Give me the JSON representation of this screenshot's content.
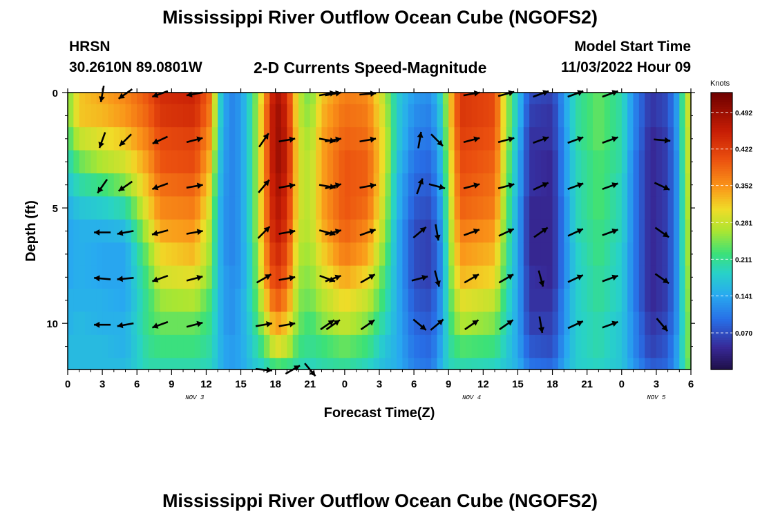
{
  "page": {
    "title": "Mississippi River Outflow Ocean Cube (NGOFS2)",
    "second_title": "Mississippi River Outflow Ocean Cube (NGOFS2)"
  },
  "header": {
    "station": "HRSN",
    "coords": "30.2610N  89.0801W",
    "subtitle": "2-D Currents Speed-Magnitude",
    "model_label": "Model Start Time",
    "model_time": "11/03/2022 Hour 09"
  },
  "colors": {
    "background": "#ffffff",
    "arrow": "#000000"
  },
  "chart_data": {
    "type": "heatmap",
    "title": "2-D Currents Speed-Magnitude",
    "xlabel": "Forecast Time(Z)",
    "ylabel": "Depth (ft)",
    "x_tick_labels": [
      "0",
      "3",
      "6",
      "9",
      "12",
      "15",
      "18",
      "21",
      "0",
      "3",
      "6",
      "9",
      "12",
      "15",
      "18",
      "21",
      "0",
      "3",
      "6"
    ],
    "x_range_hours": [
      0,
      54
    ],
    "date_labels": [
      {
        "label": "NOV 3",
        "hour": 11
      },
      {
        "label": "NOV 4",
        "hour": 35
      },
      {
        "label": "NOV 5",
        "hour": 51
      }
    ],
    "y_tick_labels": [
      "0",
      "5",
      "10"
    ],
    "y_tick_values": [
      0,
      5,
      10
    ],
    "y_range_ft": [
      0,
      12
    ],
    "colorbar": {
      "label": "Knots",
      "tick_labels": [
        "0.492",
        "0.422",
        "0.352",
        "0.281",
        "0.211",
        "0.141",
        "0.070"
      ],
      "tick_values": [
        0.492,
        0.422,
        0.352,
        0.281,
        0.211,
        0.141,
        0.07
      ],
      "range": [
        0.0,
        0.53
      ]
    },
    "depths_ft": [
      0,
      1,
      2,
      3,
      4,
      5,
      6,
      7,
      8,
      9,
      10,
      11,
      12
    ],
    "speed_profile": [
      {
        "hour": 0,
        "u": [
          0.24,
          0.24,
          0.22,
          0.19,
          0.17,
          0.15,
          0.14,
          0.14,
          0.14,
          0.15,
          0.15,
          0.16,
          0.16
        ]
      },
      {
        "hour": 1,
        "u": [
          0.32,
          0.32,
          0.28,
          0.24,
          0.2,
          0.17,
          0.15,
          0.15,
          0.15,
          0.15,
          0.16,
          0.16,
          0.16
        ]
      },
      {
        "hour": 3,
        "u": [
          0.34,
          0.33,
          0.3,
          0.27,
          0.22,
          0.18,
          0.15,
          0.14,
          0.14,
          0.15,
          0.15,
          0.16,
          0.16
        ]
      },
      {
        "hour": 5,
        "u": [
          0.36,
          0.35,
          0.32,
          0.29,
          0.25,
          0.2,
          0.16,
          0.14,
          0.14,
          0.14,
          0.15,
          0.15,
          0.16
        ]
      },
      {
        "hour": 7,
        "u": [
          0.4,
          0.39,
          0.37,
          0.35,
          0.33,
          0.31,
          0.28,
          0.25,
          0.23,
          0.22,
          0.22,
          0.21,
          0.2
        ]
      },
      {
        "hour": 8,
        "u": [
          0.44,
          0.43,
          0.41,
          0.4,
          0.38,
          0.36,
          0.34,
          0.31,
          0.29,
          0.26,
          0.24,
          0.22,
          0.2
        ]
      },
      {
        "hour": 11,
        "u": [
          0.45,
          0.44,
          0.42,
          0.41,
          0.39,
          0.37,
          0.35,
          0.33,
          0.3,
          0.27,
          0.24,
          0.22,
          0.2
        ]
      },
      {
        "hour": 12.5,
        "u": [
          0.37,
          0.36,
          0.34,
          0.32,
          0.3,
          0.28,
          0.26,
          0.25,
          0.24,
          0.22,
          0.21,
          0.2,
          0.19
        ]
      },
      {
        "hour": 13,
        "u": [
          0.2,
          0.2,
          0.19,
          0.18,
          0.17,
          0.16,
          0.16,
          0.16,
          0.16,
          0.16,
          0.16,
          0.16,
          0.16
        ]
      },
      {
        "hour": 14,
        "u": [
          0.11,
          0.11,
          0.11,
          0.11,
          0.11,
          0.11,
          0.11,
          0.11,
          0.12,
          0.12,
          0.12,
          0.13,
          0.13
        ]
      },
      {
        "hour": 15,
        "u": [
          0.13,
          0.13,
          0.13,
          0.13,
          0.13,
          0.13,
          0.13,
          0.13,
          0.13,
          0.14,
          0.14,
          0.14,
          0.14
        ]
      },
      {
        "hour": 16,
        "u": [
          0.21,
          0.21,
          0.21,
          0.21,
          0.21,
          0.21,
          0.21,
          0.2,
          0.2,
          0.2,
          0.19,
          0.18,
          0.17
        ]
      },
      {
        "hour": 17,
        "u": [
          0.34,
          0.35,
          0.35,
          0.35,
          0.35,
          0.35,
          0.35,
          0.34,
          0.33,
          0.3,
          0.27,
          0.23,
          0.19
        ]
      },
      {
        "hour": 18,
        "u": [
          0.49,
          0.5,
          0.5,
          0.5,
          0.49,
          0.48,
          0.47,
          0.45,
          0.43,
          0.4,
          0.35,
          0.3,
          0.23
        ]
      },
      {
        "hour": 19,
        "u": [
          0.44,
          0.45,
          0.46,
          0.46,
          0.45,
          0.44,
          0.43,
          0.41,
          0.39,
          0.36,
          0.32,
          0.28,
          0.22
        ]
      },
      {
        "hour": 20,
        "u": [
          0.28,
          0.28,
          0.29,
          0.29,
          0.29,
          0.29,
          0.28,
          0.27,
          0.26,
          0.25,
          0.24,
          0.22,
          0.2
        ]
      },
      {
        "hour": 21,
        "u": [
          0.24,
          0.25,
          0.26,
          0.27,
          0.27,
          0.27,
          0.27,
          0.26,
          0.25,
          0.24,
          0.22,
          0.21,
          0.19
        ]
      },
      {
        "hour": 22,
        "u": [
          0.32,
          0.33,
          0.34,
          0.34,
          0.34,
          0.34,
          0.33,
          0.31,
          0.29,
          0.27,
          0.25,
          0.22,
          0.2
        ]
      },
      {
        "hour": 24,
        "u": [
          0.37,
          0.38,
          0.39,
          0.4,
          0.4,
          0.4,
          0.39,
          0.37,
          0.34,
          0.31,
          0.28,
          0.24,
          0.21
        ]
      },
      {
        "hour": 26,
        "u": [
          0.36,
          0.37,
          0.38,
          0.39,
          0.39,
          0.38,
          0.36,
          0.34,
          0.31,
          0.28,
          0.25,
          0.22,
          0.19
        ]
      },
      {
        "hour": 27.5,
        "u": [
          0.27,
          0.28,
          0.29,
          0.29,
          0.28,
          0.27,
          0.26,
          0.24,
          0.22,
          0.21,
          0.19,
          0.17,
          0.16
        ]
      },
      {
        "hour": 28.5,
        "u": [
          0.18,
          0.18,
          0.18,
          0.17,
          0.16,
          0.16,
          0.15,
          0.15,
          0.15,
          0.15,
          0.15,
          0.15,
          0.15
        ]
      },
      {
        "hour": 30,
        "u": [
          0.13,
          0.12,
          0.11,
          0.1,
          0.09,
          0.08,
          0.07,
          0.07,
          0.07,
          0.08,
          0.09,
          0.1,
          0.11
        ]
      },
      {
        "hour": 31.5,
        "u": [
          0.12,
          0.11,
          0.1,
          0.09,
          0.08,
          0.07,
          0.06,
          0.06,
          0.06,
          0.07,
          0.08,
          0.09,
          0.1
        ]
      },
      {
        "hour": 32.5,
        "u": [
          0.2,
          0.19,
          0.18,
          0.17,
          0.16,
          0.15,
          0.14,
          0.13,
          0.13,
          0.14,
          0.14,
          0.15,
          0.16
        ]
      },
      {
        "hour": 33,
        "u": [
          0.3,
          0.3,
          0.29,
          0.28,
          0.27,
          0.26,
          0.25,
          0.24,
          0.23,
          0.22,
          0.21,
          0.2,
          0.19
        ]
      },
      {
        "hour": 34,
        "u": [
          0.43,
          0.43,
          0.42,
          0.41,
          0.4,
          0.39,
          0.37,
          0.35,
          0.33,
          0.3,
          0.27,
          0.23,
          0.2
        ]
      },
      {
        "hour": 37,
        "u": [
          0.41,
          0.41,
          0.4,
          0.39,
          0.38,
          0.37,
          0.35,
          0.33,
          0.31,
          0.28,
          0.25,
          0.22,
          0.19
        ]
      },
      {
        "hour": 38,
        "u": [
          0.27,
          0.27,
          0.27,
          0.26,
          0.25,
          0.24,
          0.23,
          0.22,
          0.21,
          0.2,
          0.19,
          0.18,
          0.17
        ]
      },
      {
        "hour": 39,
        "u": [
          0.17,
          0.17,
          0.16,
          0.15,
          0.15,
          0.14,
          0.14,
          0.14,
          0.14,
          0.14,
          0.14,
          0.14,
          0.15
        ]
      },
      {
        "hour": 40,
        "u": [
          0.07,
          0.06,
          0.05,
          0.05,
          0.05,
          0.04,
          0.04,
          0.04,
          0.05,
          0.05,
          0.06,
          0.08,
          0.1
        ]
      },
      {
        "hour": 42,
        "u": [
          0.06,
          0.05,
          0.05,
          0.04,
          0.04,
          0.04,
          0.04,
          0.04,
          0.04,
          0.05,
          0.06,
          0.07,
          0.09
        ]
      },
      {
        "hour": 43,
        "u": [
          0.13,
          0.13,
          0.12,
          0.12,
          0.12,
          0.11,
          0.11,
          0.11,
          0.11,
          0.12,
          0.12,
          0.13,
          0.14
        ]
      },
      {
        "hour": 44,
        "u": [
          0.2,
          0.2,
          0.2,
          0.19,
          0.19,
          0.19,
          0.19,
          0.18,
          0.18,
          0.18,
          0.18,
          0.18,
          0.18
        ]
      },
      {
        "hour": 46,
        "u": [
          0.24,
          0.24,
          0.24,
          0.23,
          0.23,
          0.23,
          0.22,
          0.22,
          0.21,
          0.21,
          0.2,
          0.2,
          0.19
        ]
      },
      {
        "hour": 48,
        "u": [
          0.2,
          0.2,
          0.2,
          0.2,
          0.19,
          0.19,
          0.19,
          0.18,
          0.18,
          0.18,
          0.17,
          0.17,
          0.17
        ]
      },
      {
        "hour": 49,
        "u": [
          0.12,
          0.12,
          0.12,
          0.11,
          0.11,
          0.11,
          0.11,
          0.11,
          0.11,
          0.11,
          0.12,
          0.12,
          0.13
        ]
      },
      {
        "hour": 50.5,
        "u": [
          0.05,
          0.05,
          0.04,
          0.04,
          0.04,
          0.04,
          0.04,
          0.04,
          0.04,
          0.04,
          0.05,
          0.06,
          0.08
        ]
      },
      {
        "hour": 52,
        "u": [
          0.07,
          0.07,
          0.06,
          0.06,
          0.06,
          0.06,
          0.06,
          0.06,
          0.06,
          0.06,
          0.07,
          0.08,
          0.09
        ]
      },
      {
        "hour": 53,
        "u": [
          0.15,
          0.15,
          0.15,
          0.14,
          0.14,
          0.14,
          0.14,
          0.14,
          0.14,
          0.14,
          0.14,
          0.15,
          0.15
        ]
      },
      {
        "hour": 53.6,
        "u": [
          0.3,
          0.3,
          0.29,
          0.29,
          0.28,
          0.28,
          0.27,
          0.27,
          0.26,
          0.26,
          0.25,
          0.25,
          0.24
        ]
      },
      {
        "hour": 54,
        "u": [
          0.25,
          0.25,
          0.25,
          0.25,
          0.25,
          0.24,
          0.24,
          0.24,
          0.24,
          0.23,
          0.23,
          0.23,
          0.23
        ]
      }
    ],
    "vector_rows_ft": [
      0,
      2,
      4,
      6,
      8,
      10
    ],
    "vectors_deg": [
      {
        "hour": 3,
        "dir": [
          260,
          250,
          235,
          180,
          175,
          180
        ]
      },
      {
        "hour": 5,
        "dir": [
          215,
          225,
          215,
          190,
          185,
          190
        ]
      },
      {
        "hour": 8,
        "dir": [
          200,
          205,
          200,
          195,
          200,
          200
        ]
      },
      {
        "hour": 11,
        "dir": [
          190,
          15,
          10,
          10,
          15,
          15
        ]
      },
      {
        "hour": 16.5,
        "dir": null
      },
      {
        "hour": 17,
        "dir": [
          null,
          55,
          50,
          45,
          30,
          10
        ]
      },
      {
        "hour": 19,
        "dir": [
          null,
          10,
          10,
          10,
          10,
          10
        ]
      },
      {
        "hour": 22.5,
        "dir": [
          10,
          -10,
          -10,
          -15,
          -20,
          35
        ]
      },
      {
        "hour": 23,
        "dir": [
          10,
          10,
          15,
          15,
          20,
          35
        ]
      },
      {
        "hour": 26,
        "dir": [
          5,
          10,
          10,
          20,
          30,
          35
        ]
      },
      {
        "hour": 30.5,
        "dir": [
          null,
          80,
          70,
          40,
          15,
          -40
        ]
      },
      {
        "hour": 32,
        "dir": [
          null,
          -45,
          -15,
          -80,
          -75,
          40
        ]
      },
      {
        "hour": 35,
        "dir": [
          10,
          15,
          15,
          20,
          30,
          35
        ]
      },
      {
        "hour": 38,
        "dir": [
          15,
          15,
          15,
          25,
          30,
          35
        ]
      },
      {
        "hour": 41,
        "dir": [
          20,
          20,
          25,
          35,
          -75,
          -80
        ]
      },
      {
        "hour": 44,
        "dir": [
          20,
          20,
          20,
          25,
          25,
          25
        ]
      },
      {
        "hour": 47,
        "dir": [
          20,
          20,
          20,
          20,
          20,
          20
        ]
      },
      {
        "hour": 51.5,
        "dir": [
          null,
          -5,
          -25,
          -35,
          -35,
          -50
        ]
      }
    ],
    "bottom_vectors": [
      {
        "hour": 17,
        "dir": -5
      },
      {
        "hour": 19.5,
        "dir": 30
      },
      {
        "hour": 21,
        "dir": -50
      }
    ]
  }
}
